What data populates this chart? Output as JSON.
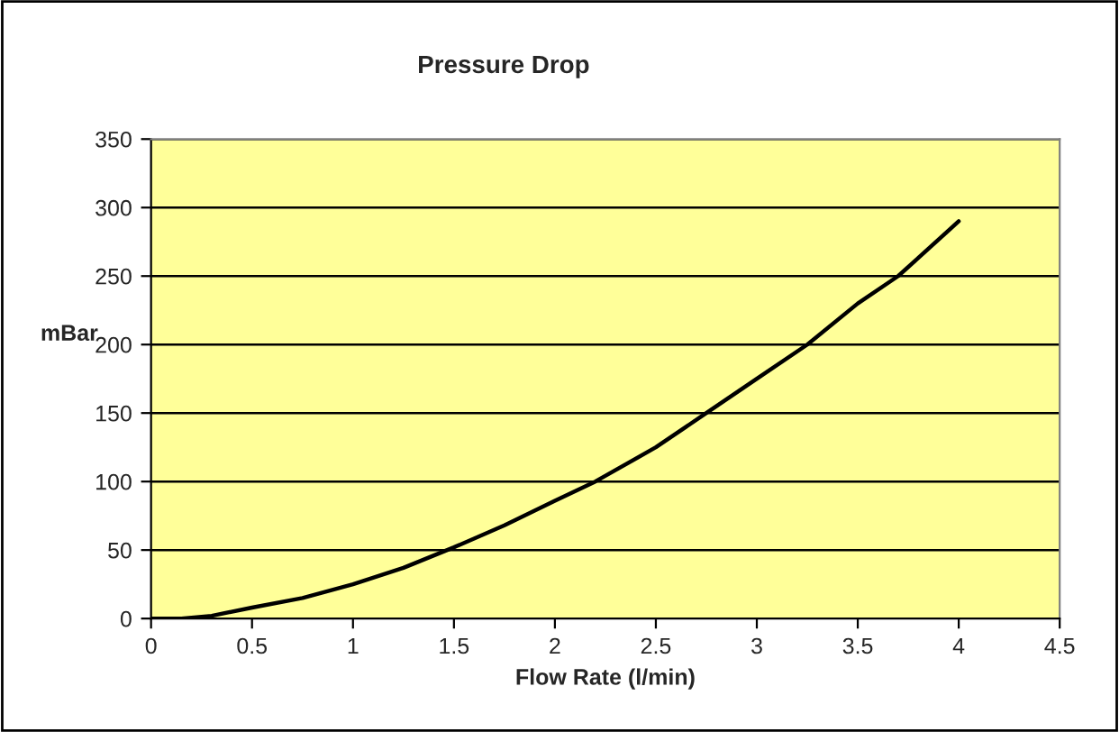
{
  "chart_data": {
    "type": "line",
    "title": "Pressure Drop",
    "xlabel": "Flow Rate (l/min)",
    "ylabel": "mBar",
    "x": [
      0,
      0.15,
      0.3,
      0.5,
      0.75,
      1.0,
      1.25,
      1.5,
      1.75,
      2.0,
      2.2,
      2.5,
      2.75,
      3.0,
      3.25,
      3.5,
      3.7,
      4.0
    ],
    "series": [
      {
        "color": "#000000",
        "values": [
          0,
          0,
          2,
          8,
          15,
          25,
          37,
          52,
          68,
          86,
          100,
          125,
          150,
          175,
          200,
          230,
          250,
          290
        ]
      }
    ],
    "xlim": [
      0,
      4.5
    ],
    "xticks": [
      0,
      0.5,
      1,
      1.5,
      2,
      2.5,
      3,
      3.5,
      4,
      4.5
    ],
    "ylim": [
      0,
      350
    ],
    "yticks": [
      0,
      50,
      100,
      150,
      200,
      250,
      300,
      350
    ],
    "grid": "y",
    "marker": "none",
    "line_style": "solid"
  }
}
